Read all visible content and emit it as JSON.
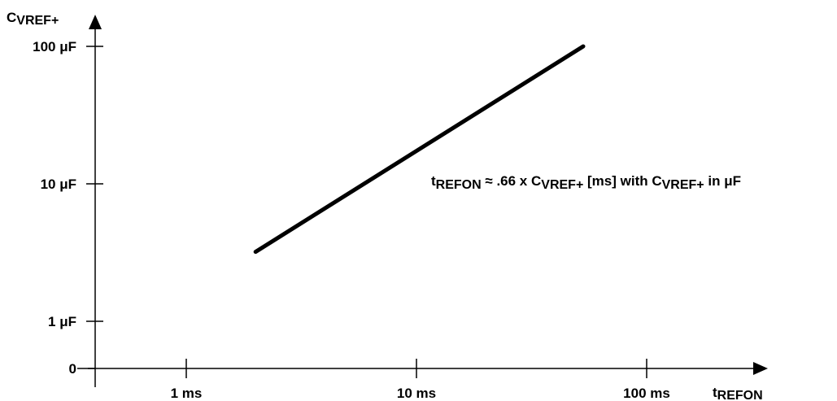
{
  "chart_data": {
    "type": "line",
    "title": "",
    "xlabel": "t",
    "xlabel_sub": "REFON",
    "ylabel": "C",
    "ylabel_sub": "VREF+",
    "x_scale": "log",
    "y_scale": "log",
    "x_ticks": [
      {
        "value": 1,
        "label": "1 ms"
      },
      {
        "value": 10,
        "label": "10 ms"
      },
      {
        "value": 100,
        "label": "100 ms"
      }
    ],
    "y_ticks": [
      {
        "value": 1,
        "label": "1 μF"
      },
      {
        "value": 10,
        "label": "10 μF"
      },
      {
        "value": 100,
        "label": "100 μF"
      }
    ],
    "y_zero_label": "0",
    "x_range_ms": [
      0.7,
      200
    ],
    "y_range_uf": [
      1,
      100
    ],
    "series": [
      {
        "color": "#000000",
        "x": [
          2.0,
          53.0
        ],
        "y": [
          3.2,
          100
        ]
      }
    ],
    "annotation": {
      "t": "t",
      "t_sub": "REFON",
      "approx": " ≈ .66 x ",
      "c": "C",
      "c_sub": "VREF+",
      "unit_text": " [ms]  with ",
      "c2": "C",
      "c2_sub": "VREF+",
      "tail": " in μF"
    },
    "grid": false,
    "legend": "none"
  }
}
